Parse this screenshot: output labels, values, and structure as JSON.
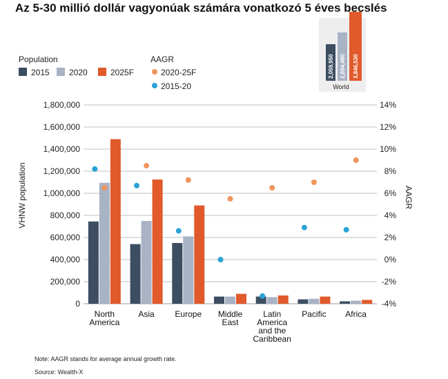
{
  "title": "Az 5-30 millió dollár vagyonúak számára vonatkozó 5 éves becslés",
  "legend": {
    "population_heading": "Population",
    "aagr_heading": "AAGR",
    "items": [
      {
        "label": "2015",
        "color": "#3d4e63"
      },
      {
        "label": "2020",
        "color": "#a9b3c6"
      },
      {
        "label": "2025F",
        "color": "#e05a2b"
      }
    ],
    "aagr_items": [
      {
        "label": "2020-25F",
        "color": "#f0955e"
      },
      {
        "label": "2015-20",
        "color": "#2aa3d6"
      }
    ]
  },
  "world_inset": {
    "category": "World",
    "values": [
      "2,059,950",
      "2,694,480",
      "3,846,530"
    ]
  },
  "notes": {
    "note": "Note: AAGR stands for average annual growth rate.",
    "source": "Source: Wealth-X"
  },
  "chart_data": {
    "type": "bar",
    "categories": [
      [
        "North",
        "America"
      ],
      [
        "Asia"
      ],
      [
        "Europe"
      ],
      [
        "Middle",
        "East"
      ],
      [
        "Latin",
        "America",
        "and the",
        "Caribbean"
      ],
      [
        "Pacific"
      ],
      [
        "Africa"
      ]
    ],
    "series": [
      {
        "name": "2015",
        "values": [
          745000,
          540000,
          550000,
          65000,
          65000,
          40000,
          22000
        ]
      },
      {
        "name": "2020",
        "values": [
          1095000,
          750000,
          610000,
          65000,
          60000,
          45000,
          28000
        ]
      },
      {
        "name": "2025F",
        "values": [
          1490000,
          1125000,
          890000,
          90000,
          75000,
          65000,
          35000
        ]
      }
    ],
    "aagr_series": [
      {
        "name": "2020-25F",
        "values": [
          6.5,
          8.5,
          7.2,
          5.5,
          6.5,
          7.0,
          9.0
        ]
      },
      {
        "name": "2015-20",
        "values": [
          8.2,
          6.7,
          2.6,
          0.0,
          -3.3,
          2.9,
          2.7
        ]
      }
    ],
    "ylabel": "VHNW population",
    "y2label": "AAGR",
    "ylim": [
      0,
      1800000
    ],
    "y2lim": [
      -4,
      14
    ],
    "yticks": [
      "0",
      "200,000",
      "400,000",
      "600,000",
      "800,000",
      "1,000,000",
      "1,200,000",
      "1,400,000",
      "1,600,000",
      "1,800,000"
    ],
    "y2ticks": [
      "-4%",
      "-2%",
      "0%",
      "2%",
      "4%",
      "6%",
      "8%",
      "10%",
      "12%",
      "14%"
    ],
    "grid": true
  }
}
